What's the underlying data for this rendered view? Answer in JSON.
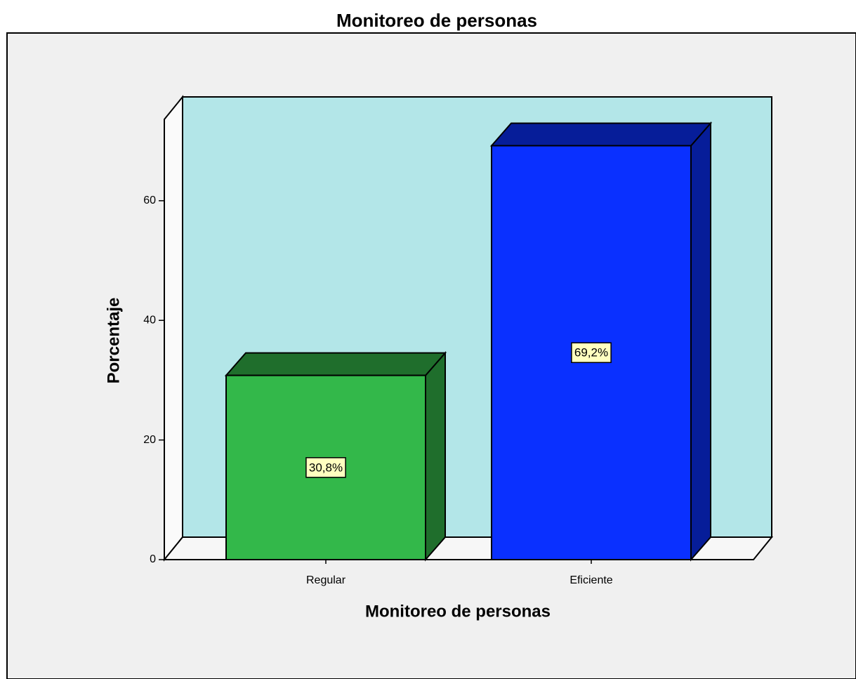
{
  "chart_data": {
    "type": "bar3d",
    "title": "Monitoreo de personas",
    "x_label": "Monitoreo de personas",
    "y_label": "Porcentaje",
    "categories": [
      "Regular",
      "Eficiente"
    ],
    "values": [
      30.8,
      69.2
    ],
    "value_labels": [
      "30,8%",
      "69,2%"
    ],
    "colors": [
      "#33b84a",
      "#0a30ff"
    ],
    "ylim": [
      0,
      73.6
    ],
    "yticks": [
      0,
      20,
      40,
      60
    ]
  }
}
